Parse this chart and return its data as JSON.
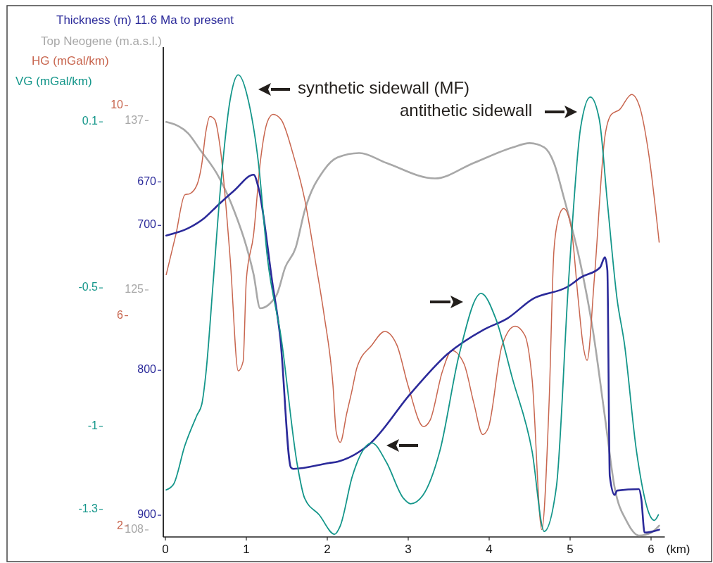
{
  "chart_data": [
    {
      "type": "line",
      "xlabel": "(km)",
      "ylabel": "Thickness (m) 11.6 Ma to present",
      "y2label": "Top Neogene (m.a.s.l.)",
      "y3label": "HG (mGal/km)",
      "xlim": [
        0,
        6.17
      ],
      "xticks": [
        0,
        1,
        2,
        3,
        4,
        5,
        6
      ],
      "ylim": [
        915,
        577
      ],
      "yticks": [
        670,
        700,
        800,
        900
      ],
      "y2lim": [
        107.5,
        142.2
      ],
      "y2ticks": [
        108,
        125,
        137
      ],
      "y3lim": [
        1.79,
        11.11
      ],
      "y3ticks": [
        2,
        6,
        10
      ],
      "annotations": [
        "synthetic sidewall (MF)",
        "antithetic sidewall"
      ],
      "series": [
        {
          "axis": "y2",
          "color": "#a8a8a8",
          "x": [
            0.01,
            0.28,
            0.42,
            0.66,
            0.85,
            1.0,
            1.09,
            1.17,
            1.37,
            1.48,
            1.61,
            1.72,
            1.96,
            2.13,
            2.4,
            2.73,
            3.33,
            3.81,
            4.29,
            4.5,
            4.68,
            4.8,
            4.92,
            5.13,
            5.28,
            5.43,
            5.55,
            5.7,
            5.85,
            6.0,
            6.1
          ],
          "values": [
            136.9,
            136.1,
            135.0,
            133.0,
            130.6,
            128.1,
            126.1,
            123.7,
            124.6,
            126.6,
            128.0,
            130.6,
            133.5,
            134.4,
            134.7,
            134.0,
            132.9,
            134.0,
            135.1,
            135.4,
            135.1,
            134.0,
            131.6,
            126.8,
            122.2,
            116.0,
            111.0,
            108.6,
            107.6,
            107.8,
            108.3
          ]
        },
        {
          "axis": "y3",
          "color": "#c8664f",
          "x": [
            0.01,
            0.13,
            0.24,
            0.3,
            0.39,
            0.45,
            0.5,
            0.55,
            0.61,
            0.68,
            0.8,
            0.9,
            0.96,
            1.0,
            1.09,
            1.17,
            1.26,
            1.33,
            1.43,
            1.58,
            1.72,
            1.87,
            1.96,
            2.07,
            2.11,
            2.16,
            2.24,
            2.3,
            2.37,
            2.55,
            2.71,
            2.86,
            3.0,
            3.19,
            3.27,
            3.42,
            3.54,
            3.69,
            3.81,
            3.92,
            3.99,
            4.16,
            4.32,
            4.44,
            4.53,
            4.65,
            4.74,
            4.8,
            4.86,
            4.92,
            5.01,
            5.1,
            5.16,
            5.21,
            5.3,
            5.43,
            5.51,
            5.61,
            5.76,
            5.86,
            5.97,
            6.1
          ],
          "values": [
            6.78,
            7.55,
            8.3,
            8.32,
            8.49,
            8.89,
            9.5,
            9.79,
            9.73,
            9.16,
            7.09,
            4.95,
            5.13,
            6.69,
            7.55,
            8.89,
            9.69,
            9.83,
            9.73,
            9.06,
            8.22,
            6.88,
            6.02,
            4.68,
            3.79,
            3.59,
            4.14,
            4.54,
            5.03,
            5.44,
            5.7,
            5.44,
            4.66,
            3.89,
            4.01,
            4.93,
            5.34,
            5.08,
            4.34,
            3.74,
            3.87,
            5.44,
            5.8,
            5.63,
            4.8,
            1.93,
            4.34,
            7.24,
            7.88,
            8.04,
            7.71,
            6.31,
            5.44,
            5.15,
            6.72,
            9.41,
            9.83,
            9.92,
            10.21,
            9.97,
            9.09,
            7.4
          ]
        },
        {
          "color": "#2b2a9a",
          "x": [
            0.01,
            0.28,
            0.48,
            0.65,
            0.85,
            1.09,
            1.15,
            1.32,
            1.42,
            1.55,
            1.58,
            2.02,
            2.13,
            2.52,
            3.03,
            3.48,
            3.93,
            4.23,
            4.53,
            4.98,
            5.13,
            5.37,
            5.43,
            5.46,
            5.49,
            5.55,
            5.58,
            5.85,
            5.88,
            5.92,
            6.1
          ],
          "values": [
            707,
            702,
            695,
            686,
            676,
            665,
            674,
            739,
            778,
            867,
            868,
            864,
            863,
            851,
            816,
            789,
            772,
            764,
            751,
            742,
            736,
            729,
            722,
            731,
            873,
            886,
            883,
            882,
            889,
            912,
            910
          ]
        }
      ]
    },
    {
      "type": "line",
      "ylabel": "VG (mGal/km)",
      "xlim": [
        0,
        6.17
      ],
      "ylim": [
        -1.4,
        0.37
      ],
      "yticks": [
        -1.3,
        -1,
        -0.5,
        0.1
      ],
      "tick_labels": "y",
      "series": [
        {
          "color": "#14968a",
          "x": [
            0.01,
            0.1,
            0.24,
            0.39,
            0.45,
            0.5,
            0.59,
            0.68,
            0.8,
            0.9,
            1.03,
            1.15,
            1.26,
            1.43,
            1.63,
            1.72,
            1.9,
            2.09,
            2.16,
            2.31,
            2.55,
            2.73,
            2.94,
            3.03,
            3.18,
            3.39,
            3.63,
            3.9,
            4.08,
            4.29,
            4.53,
            4.68,
            4.83,
            4.98,
            5.13,
            5.25,
            5.36,
            5.46,
            5.58,
            5.67,
            5.82,
            6.0,
            6.04,
            6.09
          ],
          "values": [
            -1.23,
            -1.21,
            -1.07,
            -0.96,
            -0.92,
            -0.81,
            -0.48,
            -0.14,
            0.18,
            0.27,
            0.17,
            -0.05,
            -0.39,
            -0.68,
            -1.14,
            -1.26,
            -1.32,
            -1.39,
            -1.36,
            -1.18,
            -1.06,
            -1.13,
            -1.26,
            -1.28,
            -1.25,
            -1.09,
            -0.74,
            -0.52,
            -0.61,
            -0.83,
            -1.09,
            -1.38,
            -1.22,
            -0.48,
            0.08,
            0.19,
            0.11,
            -0.19,
            -0.54,
            -0.7,
            -1.09,
            -1.33,
            -1.34,
            -1.32
          ]
        }
      ]
    }
  ]
}
